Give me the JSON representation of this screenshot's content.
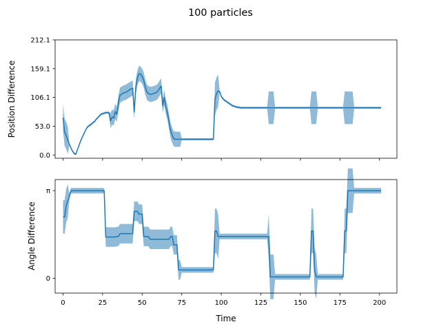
{
  "figure": {
    "suptitle": "100 particles"
  },
  "chart_data": [
    {
      "type": "line",
      "title": "",
      "xlabel": "",
      "ylabel": "Position Difference",
      "xlim": [
        -5,
        211
      ],
      "ylim": [
        -6,
        212.1
      ],
      "x_ticks": [
        0,
        25,
        50,
        75,
        100,
        125,
        150,
        175,
        200
      ],
      "x_tick_labels_visible": false,
      "y_ticks": [
        0.0,
        53.0,
        106.1,
        159.1,
        212.1
      ],
      "y_tick_labels": [
        "0.0",
        "53.0",
        "106.1",
        "159.1",
        "212.1"
      ],
      "series_color": "#1f77b4",
      "band_color": "#1f77b4",
      "series": [
        {
          "x": [
            0,
            1,
            2,
            3,
            4,
            5,
            6,
            7,
            8,
            9,
            10,
            11,
            12,
            13,
            14,
            15,
            16,
            17,
            18,
            19,
            20,
            21,
            22,
            23,
            24,
            25,
            26,
            27,
            28,
            29,
            30,
            31,
            32,
            33,
            34,
            35,
            36,
            37,
            38,
            39,
            40,
            41,
            42,
            43,
            44,
            45,
            46,
            47,
            48,
            49,
            50,
            51,
            52,
            53,
            54,
            55,
            56,
            57,
            58,
            59,
            60,
            61,
            62,
            63,
            64,
            65,
            66,
            67,
            68,
            69,
            70,
            71,
            72,
            73,
            74,
            75,
            76,
            77,
            78,
            79,
            80,
            81,
            82,
            83,
            84,
            85,
            86,
            87,
            88,
            89,
            90,
            91,
            92,
            93,
            94,
            95,
            96,
            97,
            98,
            99,
            100,
            101,
            102,
            103,
            104,
            105,
            106,
            107,
            108,
            109,
            110,
            111,
            112,
            113,
            114,
            115,
            116,
            117,
            118,
            119,
            120,
            121,
            122,
            123,
            124,
            125,
            126,
            127,
            128,
            129,
            130,
            131,
            132,
            133,
            134,
            135,
            136,
            137,
            138,
            139,
            140,
            141,
            142,
            143,
            144,
            145,
            146,
            147,
            148,
            149,
            150,
            151,
            152,
            153,
            154,
            155,
            156,
            157,
            158,
            159,
            160,
            161,
            162,
            163,
            164,
            165,
            166,
            167,
            168,
            169,
            170,
            171,
            172,
            173,
            174,
            175,
            176,
            177,
            178,
            179,
            180,
            181,
            182,
            183,
            184,
            185,
            186,
            187,
            188,
            189,
            190,
            191,
            192,
            193,
            194,
            195,
            196,
            197,
            198,
            199,
            200,
            201
          ],
          "mean": [
            69,
            42,
            36,
            27,
            20,
            13,
            7,
            3,
            1,
            9,
            17,
            25,
            32,
            38,
            44,
            50,
            53,
            55,
            57,
            60,
            62,
            66,
            69,
            72,
            75,
            76,
            77,
            78,
            78,
            78,
            63,
            70,
            68,
            80,
            75,
            96,
            110,
            112,
            114,
            115,
            116,
            118,
            120,
            122,
            123,
            79,
            126,
            142,
            150,
            149,
            145,
            138,
            125,
            116,
            113,
            112,
            112,
            113,
            114,
            115,
            118,
            123,
            127,
            91,
            106,
            88,
            78,
            61,
            45,
            36,
            30,
            29,
            29,
            29,
            29,
            29,
            29,
            29,
            29,
            29,
            29,
            29,
            29,
            29,
            29,
            29,
            29,
            29,
            29,
            29,
            29,
            29,
            29,
            29,
            29,
            29,
            103,
            113,
            118,
            117,
            108,
            104,
            101,
            99,
            97,
            95,
            93,
            91,
            90,
            89,
            88,
            88,
            87,
            87,
            87,
            87,
            87,
            87,
            87,
            87,
            87,
            87,
            87,
            87,
            87,
            87,
            87,
            87,
            87,
            87,
            87,
            87,
            87,
            87,
            87,
            87,
            87,
            87,
            87,
            87,
            87,
            87,
            87,
            87,
            87,
            87,
            87,
            87,
            87,
            87,
            87,
            87,
            87,
            87,
            87,
            87,
            87,
            87,
            87,
            87,
            87,
            87,
            87,
            87,
            87,
            87,
            87,
            87,
            87,
            87,
            87,
            87,
            87,
            87,
            87,
            87,
            87,
            87,
            87,
            87,
            87,
            87,
            87,
            87,
            87,
            87,
            87,
            87,
            87,
            87,
            87,
            87,
            87,
            87,
            87,
            87,
            87,
            87,
            87,
            87,
            87,
            87
          ],
          "lower": [],
          "upper": []
        }
      ]
    },
    {
      "type": "line",
      "title": "",
      "xlabel": "Time",
      "ylabel": "Angle Difference",
      "xlim": [
        -5,
        211
      ],
      "ylim": [
        -0.53,
        3.54
      ],
      "x_ticks": [
        0,
        25,
        50,
        75,
        100,
        125,
        150,
        175,
        200
      ],
      "x_tick_labels": [
        "0",
        "25",
        "50",
        "75",
        "100",
        "125",
        "150",
        "175",
        "200"
      ],
      "y_ticks": [
        0,
        3.14159
      ],
      "y_tick_labels": [
        "0",
        "π"
      ],
      "series_color": "#1f77b4",
      "band_color": "#1f77b4",
      "series": [
        {
          "x": [],
          "mean": [],
          "lower": [],
          "upper": []
        }
      ]
    }
  ]
}
